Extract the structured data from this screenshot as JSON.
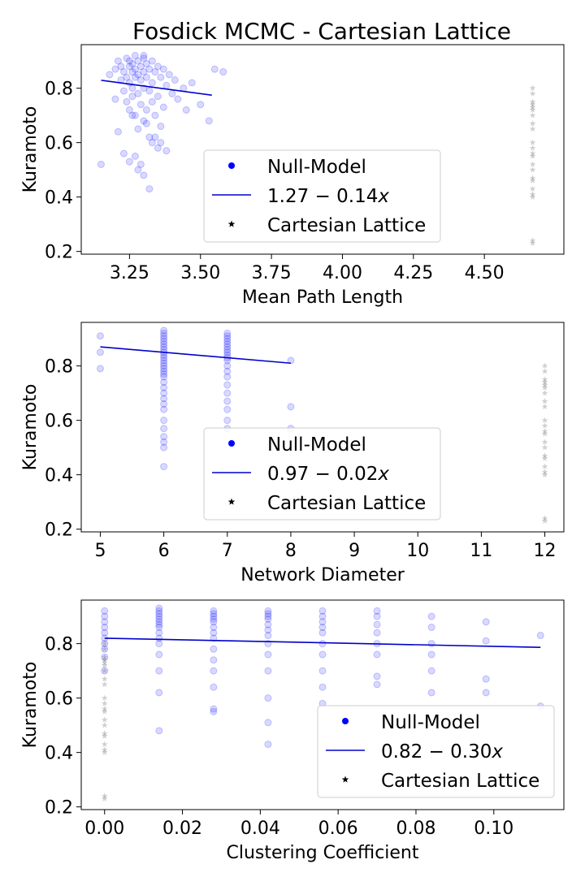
{
  "figure": {
    "title": "Fosdick MCMC - Cartesian Lattice"
  },
  "colors": {
    "null_model": "#0000ff",
    "fit_line": "#0000cc",
    "lattice": "#444444"
  },
  "chart_data": [
    {
      "type": "scatter",
      "xlabel": "Mean Path Length",
      "ylabel": "Kuramoto",
      "xlim": [
        3.08,
        4.78
      ],
      "ylim": [
        0.19,
        0.96
      ],
      "xticks": [
        3.25,
        3.5,
        3.75,
        4.0,
        4.25,
        4.5
      ],
      "xtick_labels": [
        "3.25",
        "3.50",
        "3.75",
        "4.00",
        "4.25",
        "4.50"
      ],
      "yticks": [
        0.2,
        0.4,
        0.6,
        0.8
      ],
      "ytick_labels": [
        "0.2",
        "0.4",
        "0.6",
        "0.8"
      ],
      "legend": {
        "placement": "center-bottom",
        "entries": [
          {
            "label": "Null-Model"
          },
          {
            "label": "1.27 − 0.14x",
            "tex": [
              "1.27",
              " − ",
              "0.14",
              "x"
            ]
          },
          {
            "label": "Cartesian Lattice"
          }
        ]
      },
      "fit": {
        "intercept": 1.27,
        "slope": -0.14,
        "x": [
          3.15,
          3.54
        ]
      },
      "null_model": {
        "x": [
          3.15,
          3.18,
          3.2,
          3.2,
          3.21,
          3.22,
          3.22,
          3.23,
          3.23,
          3.24,
          3.24,
          3.24,
          3.25,
          3.25,
          3.25,
          3.25,
          3.26,
          3.26,
          3.26,
          3.26,
          3.27,
          3.27,
          3.27,
          3.27,
          3.28,
          3.28,
          3.28,
          3.28,
          3.29,
          3.29,
          3.29,
          3.3,
          3.3,
          3.3,
          3.3,
          3.31,
          3.31,
          3.31,
          3.32,
          3.32,
          3.32,
          3.33,
          3.33,
          3.33,
          3.34,
          3.34,
          3.35,
          3.35,
          3.36,
          3.36,
          3.37,
          3.37,
          3.38,
          3.39,
          3.4,
          3.41,
          3.42,
          3.44,
          3.45,
          3.47,
          3.5,
          3.53,
          3.55,
          3.58,
          3.23,
          3.3,
          3.32,
          3.35,
          3.21,
          3.29,
          3.36,
          3.27,
          3.31,
          3.26,
          3.38,
          3.34,
          3.25,
          3.28,
          3.33,
          3.3
        ],
        "y": [
          0.52,
          0.85,
          0.87,
          0.76,
          0.9,
          0.83,
          0.88,
          0.86,
          0.79,
          0.91,
          0.84,
          0.75,
          0.88,
          0.82,
          0.9,
          0.72,
          0.86,
          0.8,
          0.89,
          0.77,
          0.92,
          0.84,
          0.7,
          0.87,
          0.85,
          0.9,
          0.78,
          0.65,
          0.88,
          0.83,
          0.74,
          0.91,
          0.86,
          0.8,
          0.68,
          0.89,
          0.84,
          0.72,
          0.87,
          0.79,
          0.62,
          0.9,
          0.82,
          0.75,
          0.86,
          0.7,
          0.88,
          0.77,
          0.84,
          0.66,
          0.87,
          0.73,
          0.81,
          0.85,
          0.78,
          0.83,
          0.76,
          0.8,
          0.72,
          0.82,
          0.74,
          0.68,
          0.87,
          0.86,
          0.56,
          0.48,
          0.43,
          0.58,
          0.64,
          0.52,
          0.6,
          0.55,
          0.67,
          0.7,
          0.57,
          0.62,
          0.53,
          0.5,
          0.6,
          0.92
        ],
        "alpha": 0.15
      },
      "lattice": {
        "x": [
          4.67,
          4.67,
          4.67,
          4.67,
          4.67,
          4.67,
          4.67,
          4.67,
          4.67,
          4.67,
          4.67,
          4.67,
          4.67,
          4.67,
          4.67,
          4.67,
          4.67,
          4.67,
          4.67,
          4.67,
          4.67,
          4.67
        ],
        "y": [
          0.8,
          0.78,
          0.75,
          0.74,
          0.73,
          0.7,
          0.67,
          0.65,
          0.6,
          0.58,
          0.56,
          0.55,
          0.52,
          0.5,
          0.47,
          0.46,
          0.43,
          0.41,
          0.4,
          0.24,
          0.23,
          0.72
        ],
        "alpha": 0.25
      }
    },
    {
      "type": "scatter",
      "xlabel": "Network Diameter",
      "ylabel": "Kuramoto",
      "xlim": [
        4.7,
        12.3
      ],
      "ylim": [
        0.19,
        0.96
      ],
      "xticks": [
        5,
        6,
        7,
        8,
        9,
        10,
        11,
        12
      ],
      "xtick_labels": [
        "5",
        "6",
        "7",
        "8",
        "9",
        "10",
        "11",
        "12"
      ],
      "yticks": [
        0.2,
        0.4,
        0.6,
        0.8
      ],
      "ytick_labels": [
        "0.2",
        "0.4",
        "0.6",
        "0.8"
      ],
      "legend": {
        "placement": "center-bottom",
        "entries": [
          {
            "label": "Null-Model"
          },
          {
            "label": "0.97 − 0.02x",
            "tex": [
              "0.97",
              " − ",
              "0.02",
              "x"
            ]
          },
          {
            "label": "Cartesian Lattice"
          }
        ]
      },
      "fit": {
        "intercept": 0.97,
        "slope": -0.02,
        "x": [
          5,
          8
        ]
      },
      "null_model": {
        "x": [
          5,
          5,
          5,
          6,
          6,
          6,
          6,
          6,
          6,
          6,
          6,
          6,
          6,
          6,
          6,
          6,
          6,
          6,
          6,
          6,
          6,
          6,
          6,
          6,
          6,
          6,
          6,
          6,
          6,
          6,
          6,
          6,
          6,
          7,
          7,
          7,
          7,
          7,
          7,
          7,
          7,
          7,
          7,
          7,
          7,
          7,
          7,
          7,
          7,
          7,
          7,
          7,
          7,
          8,
          8,
          8
        ],
        "y": [
          0.91,
          0.85,
          0.79,
          0.93,
          0.92,
          0.91,
          0.9,
          0.89,
          0.88,
          0.87,
          0.86,
          0.85,
          0.84,
          0.83,
          0.82,
          0.81,
          0.8,
          0.79,
          0.78,
          0.77,
          0.76,
          0.74,
          0.72,
          0.7,
          0.68,
          0.66,
          0.64,
          0.6,
          0.57,
          0.54,
          0.52,
          0.5,
          0.43,
          0.92,
          0.91,
          0.9,
          0.89,
          0.88,
          0.87,
          0.86,
          0.85,
          0.84,
          0.83,
          0.82,
          0.8,
          0.78,
          0.76,
          0.73,
          0.7,
          0.67,
          0.64,
          0.6,
          0.57,
          0.82,
          0.65,
          0.57
        ],
        "alpha": 0.15
      },
      "lattice": {
        "x": [
          12,
          12,
          12,
          12,
          12,
          12,
          12,
          12,
          12,
          12,
          12,
          12,
          12,
          12,
          12,
          12,
          12,
          12,
          12,
          12,
          12,
          12
        ],
        "y": [
          0.8,
          0.78,
          0.75,
          0.74,
          0.73,
          0.7,
          0.67,
          0.65,
          0.6,
          0.58,
          0.56,
          0.55,
          0.52,
          0.5,
          0.47,
          0.46,
          0.43,
          0.41,
          0.4,
          0.24,
          0.23,
          0.72
        ],
        "alpha": 0.25
      }
    },
    {
      "type": "scatter",
      "xlabel": "Clustering Coefficient",
      "ylabel": "Kuramoto",
      "xlim": [
        -0.006,
        0.118
      ],
      "ylim": [
        0.19,
        0.96
      ],
      "xticks": [
        0.0,
        0.02,
        0.04,
        0.06,
        0.08,
        0.1
      ],
      "xtick_labels": [
        "0.00",
        "0.02",
        "0.04",
        "0.06",
        "0.08",
        "0.10"
      ],
      "yticks": [
        0.2,
        0.4,
        0.6,
        0.8
      ],
      "ytick_labels": [
        "0.2",
        "0.4",
        "0.6",
        "0.8"
      ],
      "legend": {
        "placement": "lower-right",
        "entries": [
          {
            "label": "Null-Model"
          },
          {
            "label": "0.82 − 0.30x",
            "tex": [
              "0.82",
              " − ",
              "0.30",
              "x"
            ]
          },
          {
            "label": "Cartesian Lattice"
          }
        ]
      },
      "fit": {
        "intercept": 0.82,
        "slope": -0.3,
        "x": [
          0.0,
          0.112
        ]
      },
      "null_model": {
        "x": [
          0,
          0,
          0,
          0,
          0,
          0,
          0,
          0,
          0,
          0,
          0.014,
          0.014,
          0.014,
          0.014,
          0.014,
          0.014,
          0.014,
          0.014,
          0.014,
          0.014,
          0.014,
          0.014,
          0.014,
          0.014,
          0.014,
          0.028,
          0.028,
          0.028,
          0.028,
          0.028,
          0.028,
          0.028,
          0.028,
          0.028,
          0.028,
          0.028,
          0.028,
          0.028,
          0.028,
          0.042,
          0.042,
          0.042,
          0.042,
          0.042,
          0.042,
          0.042,
          0.042,
          0.042,
          0.042,
          0.042,
          0.042,
          0.042,
          0.056,
          0.056,
          0.056,
          0.056,
          0.056,
          0.056,
          0.056,
          0.056,
          0.056,
          0.056,
          0.07,
          0.07,
          0.07,
          0.07,
          0.07,
          0.07,
          0.07,
          0.07,
          0.084,
          0.084,
          0.084,
          0.084,
          0.084,
          0.084,
          0.098,
          0.098,
          0.098,
          0.098,
          0.112,
          0.112
        ],
        "y": [
          0.92,
          0.9,
          0.88,
          0.86,
          0.84,
          0.82,
          0.8,
          0.78,
          0.75,
          0.7,
          0.93,
          0.92,
          0.91,
          0.9,
          0.89,
          0.88,
          0.87,
          0.86,
          0.84,
          0.82,
          0.8,
          0.76,
          0.7,
          0.62,
          0.48,
          0.92,
          0.91,
          0.9,
          0.89,
          0.88,
          0.86,
          0.84,
          0.82,
          0.78,
          0.74,
          0.7,
          0.64,
          0.56,
          0.55,
          0.92,
          0.91,
          0.9,
          0.89,
          0.87,
          0.85,
          0.83,
          0.8,
          0.76,
          0.7,
          0.6,
          0.51,
          0.43,
          0.92,
          0.9,
          0.88,
          0.86,
          0.84,
          0.8,
          0.76,
          0.7,
          0.64,
          0.58,
          0.92,
          0.9,
          0.87,
          0.84,
          0.8,
          0.76,
          0.68,
          0.65,
          0.9,
          0.86,
          0.8,
          0.76,
          0.7,
          0.62,
          0.88,
          0.81,
          0.67,
          0.62,
          0.83,
          0.57
        ],
        "alpha": 0.15
      },
      "lattice": {
        "x": [
          0,
          0,
          0,
          0,
          0,
          0,
          0,
          0,
          0,
          0,
          0,
          0,
          0,
          0,
          0,
          0,
          0,
          0,
          0,
          0,
          0,
          0
        ],
        "y": [
          0.8,
          0.78,
          0.75,
          0.74,
          0.73,
          0.7,
          0.67,
          0.65,
          0.6,
          0.58,
          0.56,
          0.55,
          0.52,
          0.5,
          0.47,
          0.46,
          0.43,
          0.41,
          0.4,
          0.24,
          0.23,
          0.72
        ],
        "alpha": 0.25
      }
    }
  ]
}
